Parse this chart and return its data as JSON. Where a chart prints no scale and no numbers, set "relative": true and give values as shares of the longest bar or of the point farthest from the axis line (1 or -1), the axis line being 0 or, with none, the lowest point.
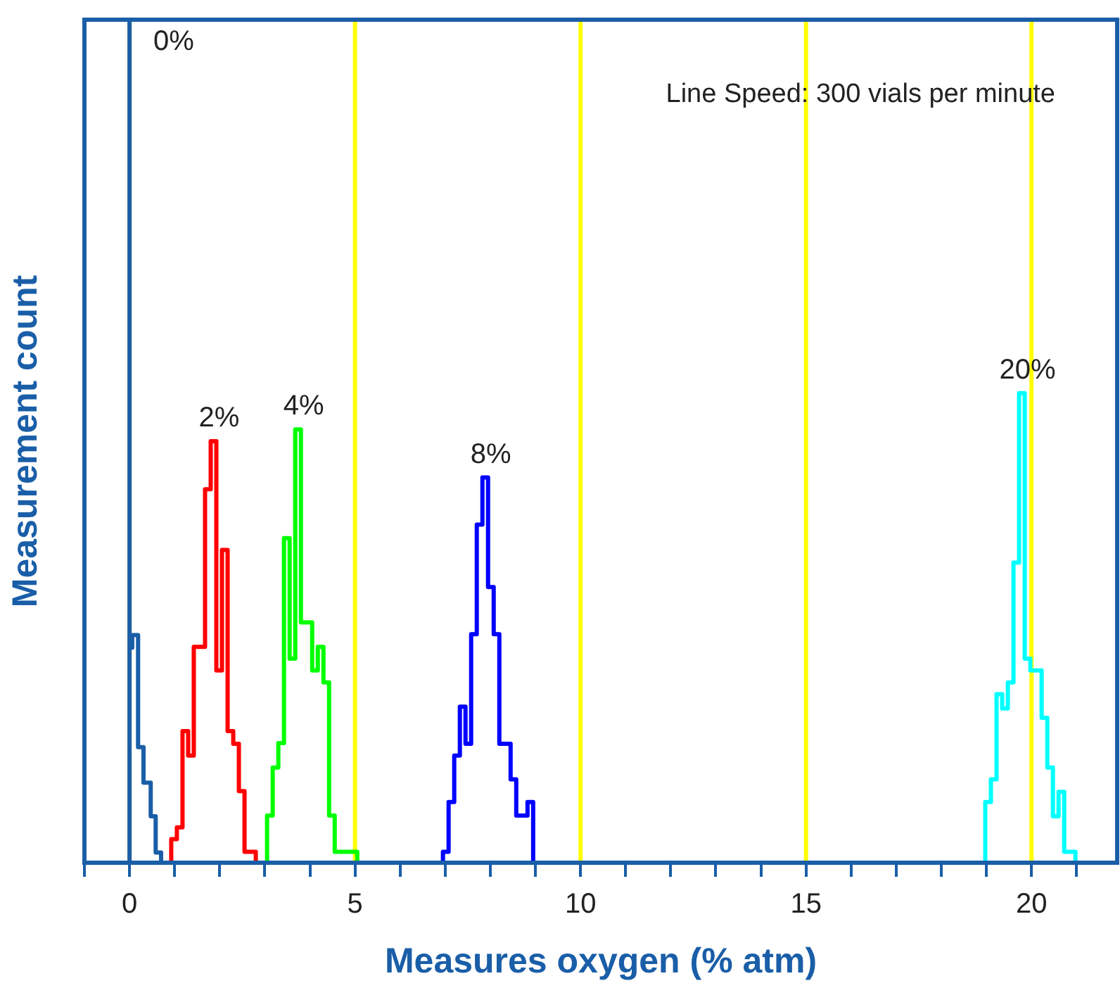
{
  "chart_data": {
    "type": "step",
    "xlabel": "Measures oxygen (% atm)",
    "ylabel": "Measurement count",
    "relative": true,
    "xlim": [
      -1,
      21.9
    ],
    "xticks": [
      {
        "value": -1,
        "label": null
      },
      0,
      {
        "value": 1,
        "label": null
      },
      {
        "value": 2,
        "label": null
      },
      {
        "value": 3,
        "label": null
      },
      {
        "value": 4,
        "label": null
      },
      5,
      {
        "value": 6,
        "label": null
      },
      {
        "value": 7,
        "label": null
      },
      {
        "value": 8,
        "label": null
      },
      {
        "value": 9,
        "label": null
      },
      10,
      {
        "value": 11,
        "label": null
      },
      {
        "value": 12,
        "label": null
      },
      {
        "value": 13,
        "label": null
      },
      {
        "value": 14,
        "label": null
      },
      15,
      {
        "value": 16,
        "label": null
      },
      {
        "value": 17,
        "label": null
      },
      {
        "value": 18,
        "label": null
      },
      {
        "value": 19,
        "label": null
      },
      20,
      {
        "value": 21,
        "label": null
      }
    ],
    "grid": false,
    "legend": false,
    "series": [
      {
        "name": "0%",
        "color": "#1a5ea8",
        "x": [
          0,
          0,
          0.06,
          0.19,
          0.31,
          0.47,
          0.58,
          0.7,
          1.09
        ],
        "values": [
          0,
          1,
          0.255,
          0.27,
          0.137,
          0.095,
          0.055,
          0.012,
          0
        ]
      },
      {
        "name": "2%",
        "color": "#ff0000",
        "x": [
          0.925,
          0.925,
          1.05,
          1.175,
          1.3,
          1.425,
          1.55,
          1.675,
          1.8,
          1.925,
          2.05,
          2.175,
          2.3,
          2.425,
          2.55,
          2.675,
          2.8,
          2.925
        ],
        "values": [
          0,
          0.028,
          0.028,
          0.042,
          0.156,
          0.127,
          0.256,
          0.256,
          0.443,
          0.5,
          0.228,
          0.371,
          0.156,
          0.141,
          0.085,
          0.013,
          0.013,
          0
        ]
      },
      {
        "name": "4%",
        "color": "#00ff00",
        "x": [
          3.05,
          3.05,
          3.175,
          3.3,
          3.425,
          3.55,
          3.675,
          3.8,
          3.925,
          4.05,
          4.175,
          4.3,
          4.425,
          4.55,
          4.675,
          4.8,
          4.925,
          5.05,
          5.175
        ],
        "values": [
          0,
          0.028,
          0.056,
          0.113,
          0.142,
          0.385,
          0.242,
          0.514,
          0.285,
          0.285,
          0.228,
          0.256,
          0.214,
          0.056,
          0.013,
          0.013,
          0.013,
          0.013,
          0
        ]
      },
      {
        "name": "8%",
        "color": "#0000ff",
        "x": [
          6.95,
          6.95,
          7.075,
          7.2,
          7.325,
          7.45,
          7.575,
          7.7,
          7.825,
          7.95,
          8.075,
          8.2,
          8.325,
          8.45,
          8.575,
          8.7,
          8.825,
          8.95,
          9.075
        ],
        "values": [
          0,
          0.013,
          0.013,
          0.072,
          0.127,
          0.185,
          0.141,
          0.271,
          0.401,
          0.457,
          0.327,
          0.271,
          0.141,
          0.141,
          0.099,
          0.056,
          0.056,
          0.072,
          0
        ]
      },
      {
        "name": "20%",
        "color": "#00ffff",
        "x": [
          18.975,
          18.975,
          19.1,
          19.225,
          19.35,
          19.475,
          19.6,
          19.725,
          19.85,
          19.975,
          20.1,
          20.225,
          20.35,
          20.475,
          20.6,
          20.725,
          20.85,
          20.975,
          21.1
        ],
        "values": [
          0,
          0.013,
          0.072,
          0.099,
          0.2,
          0.183,
          0.214,
          0.356,
          0.557,
          0.242,
          0.228,
          0.228,
          0.172,
          0.113,
          0.055,
          0.084,
          0.013,
          0.013,
          0
        ]
      }
    ],
    "ref_lines": [
      {
        "axis": "x",
        "value": 0,
        "color": "#ffff00"
      },
      {
        "axis": "x",
        "value": 5,
        "color": "#ffff00"
      },
      {
        "axis": "x",
        "value": 10,
        "color": "#ffff00"
      },
      {
        "axis": "x",
        "value": 15,
        "color": "#ffff00"
      },
      {
        "axis": "x",
        "value": 20,
        "color": "#ffff00"
      }
    ],
    "annotations": [
      "Line Speed: 300 vials per minute"
    ]
  }
}
